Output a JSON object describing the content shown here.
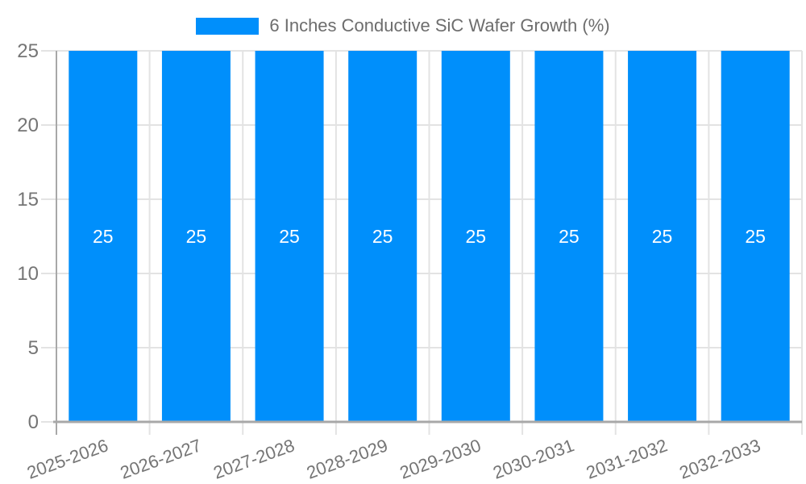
{
  "chart_data": {
    "type": "bar",
    "title": "6 Inches Conductive SiC Wafer Growth (%)",
    "categories": [
      "2025-2026",
      "2026-2027",
      "2027-2028",
      "2028-2029",
      "2029-2030",
      "2030-2031",
      "2031-2032",
      "2032-2033"
    ],
    "values": [
      25,
      25,
      25,
      25,
      25,
      25,
      25,
      25
    ],
    "value_labels": [
      "25",
      "25",
      "25",
      "25",
      "25",
      "25",
      "25",
      "25"
    ],
    "xlabel": "",
    "ylabel": "",
    "ylim": [
      0,
      25
    ],
    "yticks": [
      0,
      5,
      10,
      15,
      20,
      25
    ],
    "ytick_labels": [
      "0",
      "5",
      "10",
      "15",
      "20",
      "25"
    ],
    "grid": true,
    "legend_position": "top",
    "x_label_rotation_deg": -20,
    "colors": {
      "bar": "#008FFB",
      "grid": "#E3E3E3",
      "axis": "#A8A8A8",
      "tick_label": "#757575",
      "legend_text": "#6D6D6D",
      "value_label": "#FFFFFF",
      "background": "#FFFFFF"
    }
  }
}
